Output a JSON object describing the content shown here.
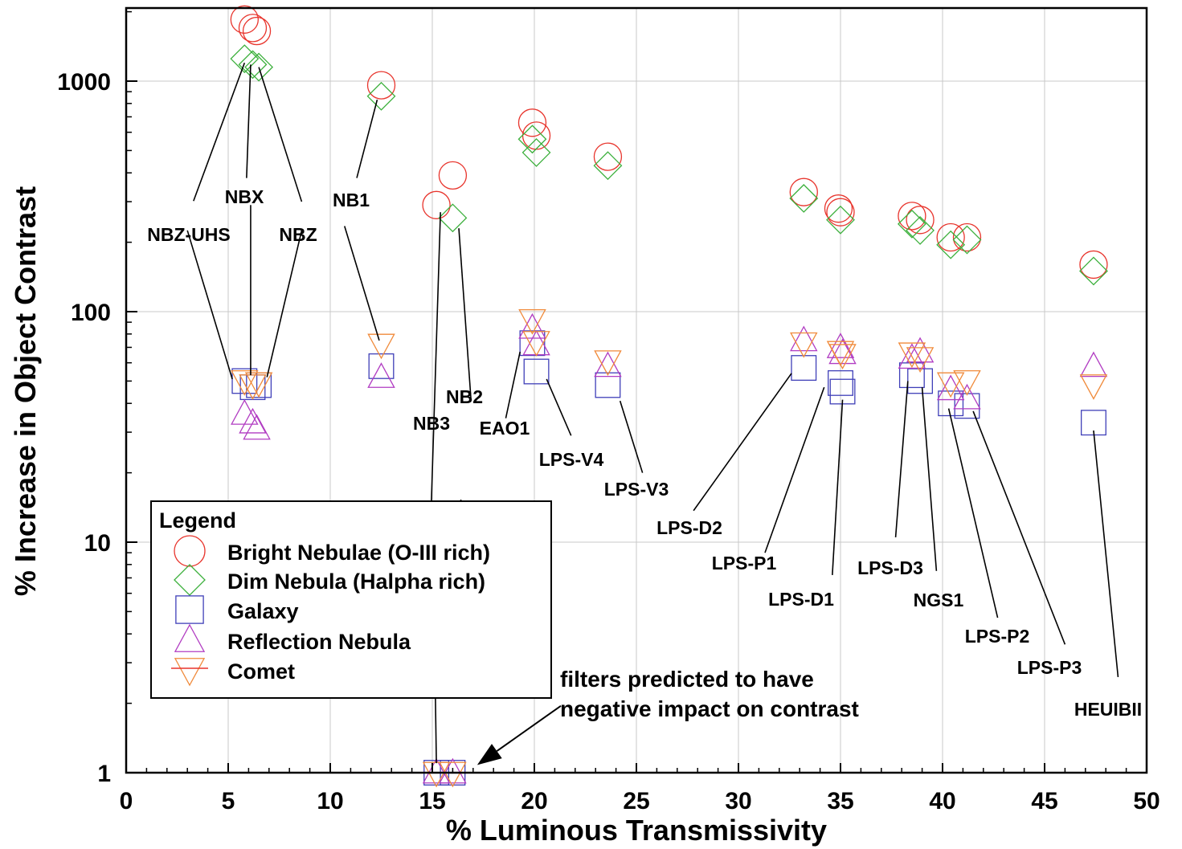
{
  "chart_data": {
    "type": "scatter",
    "xlabel": "% Luminous Transmissivity",
    "ylabel": "% Increase in Object Contrast",
    "xlim": [
      0,
      50
    ],
    "ylim": [
      1,
      2000
    ],
    "yscale": "log",
    "x_ticks": [
      "0",
      "5",
      "10",
      "15",
      "20",
      "25",
      "30",
      "35",
      "40",
      "45",
      "50"
    ],
    "y_ticks": [
      "1",
      "10",
      "100",
      "1000"
    ],
    "grid": true,
    "legend": {
      "title": "Legend",
      "position": "bottom-left",
      "entries": [
        "Bright Nebulae (O-III rich)",
        "Dim Nebula (Halpha rich)",
        "Galaxy",
        "Reflection Nebula",
        "Comet"
      ]
    },
    "series": [
      {
        "name": "Bright Nebulae (O-III rich)",
        "marker": "circle",
        "color": "#e8352d",
        "x": [
          5.8,
          6.2,
          6.4,
          12.5,
          15.2,
          16.0,
          19.9,
          20.1,
          23.6,
          33.2,
          34.9,
          35.0,
          38.5,
          38.9,
          40.4,
          41.2,
          47.4
        ],
        "y": [
          1850,
          1700,
          1650,
          960,
          290,
          390,
          660,
          580,
          470,
          330,
          280,
          270,
          260,
          250,
          210,
          210,
          160
        ]
      },
      {
        "name": "Dim Nebula (Halpha rich)",
        "marker": "diamond",
        "color": "#3cb03c",
        "x": [
          5.8,
          6.2,
          6.5,
          12.5,
          16.0,
          19.9,
          20.1,
          23.6,
          33.2,
          35.0,
          38.5,
          38.9,
          40.4,
          41.2,
          47.4
        ],
        "y": [
          1250,
          1180,
          1150,
          860,
          255,
          560,
          490,
          430,
          310,
          250,
          240,
          225,
          195,
          205,
          150
        ]
      },
      {
        "name": "Galaxy",
        "marker": "square",
        "color": "#3f3fb8",
        "x": [
          5.8,
          6.2,
          6.5,
          12.5,
          15.2,
          16.0,
          19.9,
          20.1,
          23.6,
          33.2,
          35.0,
          35.1,
          38.5,
          38.9,
          40.4,
          41.2,
          47.4
        ],
        "y": [
          50,
          47,
          48,
          58,
          1,
          1,
          73,
          55,
          48,
          57,
          49,
          45,
          53,
          50,
          40,
          39,
          33
        ]
      },
      {
        "name": "Reflection Nebula",
        "marker": "triangle-up",
        "color": "#b13cc2",
        "x": [
          5.8,
          6.2,
          6.4,
          12.5,
          15.2,
          16.0,
          19.9,
          20.1,
          23.6,
          33.2,
          35.0,
          35.1,
          38.5,
          38.9,
          40.4,
          41.2,
          47.4
        ],
        "y": [
          36,
          33,
          31,
          52,
          1,
          1,
          85,
          72,
          58,
          75,
          70,
          66,
          63,
          67,
          46,
          42,
          58
        ]
      },
      {
        "name": "Comet",
        "marker": "triangle-down",
        "color": "#f08a3a",
        "x": [
          5.8,
          6.2,
          6.5,
          12.5,
          15.2,
          16.0,
          19.9,
          20.1,
          23.6,
          33.2,
          35.0,
          35.1,
          38.5,
          38.9,
          40.4,
          41.2,
          47.4
        ],
        "y": [
          50,
          48,
          49,
          72,
          1,
          1,
          92,
          74,
          61,
          73,
          67,
          65,
          66,
          63,
          49,
          50,
          48
        ]
      }
    ],
    "annotations": [
      {
        "label": "NBZ-UHS",
        "lines": [
          [
            5.8,
            1200,
            3.3,
            302
          ],
          [
            3.0,
            225,
            5.2,
            51
          ]
        ]
      },
      {
        "label": "NBX",
        "lines": [
          [
            6.1,
            1180,
            5.9,
            380
          ],
          [
            6.1,
            290,
            6.1,
            53
          ]
        ]
      },
      {
        "label": "NBZ",
        "lines": [
          [
            6.5,
            1150,
            8.6,
            300
          ],
          [
            8.6,
            225,
            6.9,
            52
          ]
        ]
      },
      {
        "label": "NB1",
        "lines": [
          [
            12.3,
            830,
            11.3,
            380
          ],
          [
            10.7,
            235,
            12.4,
            75
          ]
        ]
      },
      {
        "label": "NB3",
        "lines": [
          [
            15.4,
            270,
            14.95,
            14.5
          ],
          [
            15.1,
            4.4,
            15.2,
            1.1
          ]
        ]
      },
      {
        "label": "NB2",
        "lines": [
          [
            16.3,
            230,
            16.9,
            41
          ],
          [
            16.4,
            15.3,
            16.3,
            4.2
          ]
        ]
      },
      {
        "label": "EAO1",
        "lines": [
          [
            18.6,
            34.5,
            19.3,
            67
          ]
        ]
      },
      {
        "label": "LPS-V4",
        "lines": [
          [
            20.6,
            51,
            21.8,
            29
          ]
        ]
      },
      {
        "label": "LPS-V3",
        "lines": [
          [
            24.2,
            41,
            25.3,
            20
          ]
        ]
      },
      {
        "label": "LPS-D2",
        "lines": [
          [
            32.6,
            54,
            27.8,
            13.7
          ]
        ]
      },
      {
        "label": "LPS-P1",
        "lines": [
          [
            34.2,
            47,
            31.3,
            9.0
          ]
        ]
      },
      {
        "label": "LPS-D1",
        "lines": [
          [
            35.1,
            41.5,
            34.6,
            7.2
          ]
        ]
      },
      {
        "label": "LPS-D3",
        "lines": [
          [
            38.3,
            50,
            37.7,
            10.5
          ]
        ]
      },
      {
        "label": "NGS1",
        "lines": [
          [
            39.0,
            47,
            39.7,
            7.5
          ]
        ]
      },
      {
        "label": "LPS-P2",
        "lines": [
          [
            40.3,
            38,
            42.7,
            4.7
          ]
        ]
      },
      {
        "label": "LPS-P3",
        "lines": [
          [
            41.5,
            37,
            46.0,
            3.6
          ]
        ]
      },
      {
        "label": "HEUIBII",
        "lines": [
          [
            47.4,
            30.5,
            48.6,
            2.6
          ]
        ]
      }
    ],
    "note": {
      "line1": "filters predicted to have",
      "line2": "negative impact on contrast",
      "arrow_to": [
        17.2,
        1.08
      ],
      "arrow_from": [
        21.3,
        1.95
      ]
    }
  }
}
